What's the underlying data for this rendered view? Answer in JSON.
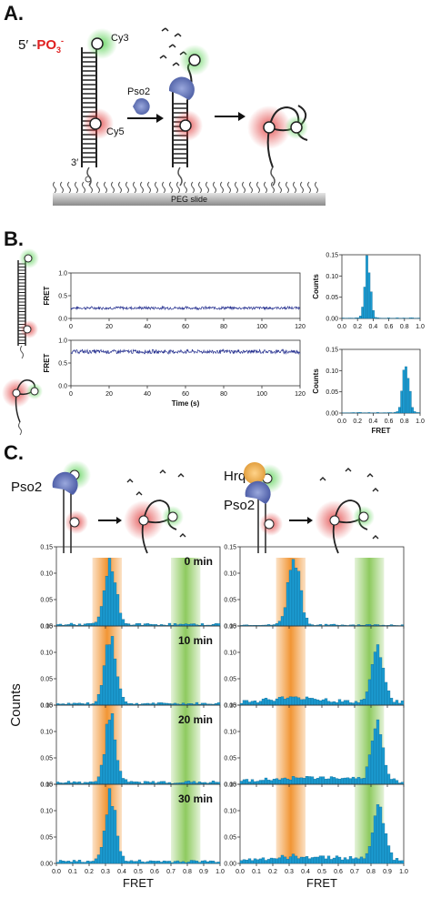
{
  "panels": {
    "a": "A.",
    "b": "B.",
    "c": "C."
  },
  "panelA": {
    "five_prime": "5′ -",
    "phosphate": "PO",
    "phosphate_sub": "3",
    "phosphate_sup": "-",
    "cy3": "Cy3",
    "cy5": "Cy5",
    "three_prime": "3′",
    "enzyme": "Pso2",
    "slide": "PEG slide"
  },
  "panelB": {
    "trace_ylabel": "FRET",
    "trace_xlabel": "Time (s)",
    "hist_ylabel": "Counts",
    "hist_xlabel": "FRET"
  },
  "panelC": {
    "left_enzyme": "Pso2",
    "right_enzyme_top": "Hrq1",
    "right_enzyme_bottom": "Pso2",
    "times": [
      "0 min",
      "10 min",
      "20 min",
      "30 min"
    ],
    "ylabel": "Counts",
    "xlabel": "FRET"
  },
  "colors": {
    "trace": "#1f2a8c",
    "hist": "#1b9bd1",
    "orange": "#f08a1e",
    "green": "#7ac143",
    "red": "#e02020"
  },
  "chart_data": [
    {
      "type": "line",
      "id": "trace-intact",
      "ylabel": "FRET",
      "xlabel": "",
      "xlim": [
        0,
        120
      ],
      "ylim": [
        0,
        1
      ],
      "x_ticks": [
        0,
        20,
        40,
        60,
        80,
        100,
        120
      ],
      "y_ticks": [
        0.0,
        0.5,
        1.0
      ],
      "series": [
        {
          "mean": 0.23,
          "noise": 0.03
        }
      ]
    },
    {
      "type": "line",
      "id": "trace-cleaved",
      "ylabel": "FRET",
      "xlabel": "Time (s)",
      "xlim": [
        0,
        120
      ],
      "ylim": [
        0,
        1
      ],
      "x_ticks": [
        0,
        20,
        40,
        60,
        80,
        100,
        120
      ],
      "y_ticks": [
        0.0,
        0.5,
        1.0
      ],
      "series": [
        {
          "mean": 0.75,
          "noise": 0.04
        }
      ]
    },
    {
      "type": "bar",
      "id": "hist-intact",
      "ylabel": "Counts",
      "xlabel": "",
      "xlim": [
        0,
        1
      ],
      "ylim": [
        0,
        0.15
      ],
      "x_ticks": [
        0.0,
        0.2,
        0.4,
        0.6,
        0.8,
        1.0
      ],
      "y_ticks": [
        0.0,
        0.05,
        0.1,
        0.15
      ],
      "peaks": [
        {
          "center": 0.33,
          "height": 0.14,
          "width": 0.035
        }
      ]
    },
    {
      "type": "bar",
      "id": "hist-cleaved",
      "ylabel": "Counts",
      "xlabel": "FRET",
      "xlim": [
        0,
        1
      ],
      "ylim": [
        0,
        0.15
      ],
      "x_ticks": [
        0.0,
        0.2,
        0.4,
        0.6,
        0.8,
        1.0
      ],
      "y_ticks": [
        0.0,
        0.05,
        0.1,
        0.15
      ],
      "peaks": [
        {
          "center": 0.82,
          "height": 0.12,
          "width": 0.04
        }
      ]
    },
    {
      "type": "bar",
      "id": "c-left",
      "ylabel": "Counts",
      "xlabel": "FRET",
      "xlim": [
        0,
        1
      ],
      "ylim": [
        0,
        0.15
      ],
      "x_ticks": [
        0.0,
        0.1,
        0.2,
        0.3,
        0.4,
        0.5,
        0.6,
        0.7,
        0.8,
        0.9,
        1.0
      ],
      "y_ticks": [
        0.0,
        0.05,
        0.1,
        0.15
      ],
      "bands": {
        "orange": [
          0.22,
          0.4
        ],
        "green": [
          0.7,
          0.88
        ]
      },
      "panels": [
        {
          "label": "0 min",
          "peaks": [
            {
              "center": 0.33,
              "height": 0.115,
              "width": 0.035
            }
          ],
          "floor": 0.003
        },
        {
          "label": "10 min",
          "peaks": [
            {
              "center": 0.33,
              "height": 0.12,
              "width": 0.035
            }
          ],
          "floor": 0.003
        },
        {
          "label": "20 min",
          "peaks": [
            {
              "center": 0.33,
              "height": 0.12,
              "width": 0.033
            }
          ],
          "floor": 0.004
        },
        {
          "label": "30 min",
          "peaks": [
            {
              "center": 0.33,
              "height": 0.125,
              "width": 0.033
            }
          ],
          "floor": 0.004
        }
      ]
    },
    {
      "type": "bar",
      "id": "c-right",
      "ylabel": "Counts",
      "xlabel": "FRET",
      "xlim": [
        0,
        1
      ],
      "ylim": [
        0,
        0.15
      ],
      "x_ticks": [
        0.0,
        0.1,
        0.2,
        0.3,
        0.4,
        0.5,
        0.6,
        0.7,
        0.8,
        0.9,
        1.0
      ],
      "y_ticks": [
        0.0,
        0.05,
        0.1,
        0.15
      ],
      "bands": {
        "orange": [
          0.22,
          0.4
        ],
        "green": [
          0.7,
          0.88
        ]
      },
      "panels": [
        {
          "peaks": [
            {
              "center": 0.33,
              "height": 0.135,
              "width": 0.035
            }
          ],
          "floor": 0.002
        },
        {
          "peaks": [
            {
              "center": 0.84,
              "height": 0.11,
              "width": 0.035
            },
            {
              "center": 0.35,
              "height": 0.008,
              "width": 0.15
            }
          ],
          "floor": 0.006
        },
        {
          "peaks": [
            {
              "center": 0.84,
              "height": 0.1,
              "width": 0.035
            },
            {
              "center": 0.45,
              "height": 0.007,
              "width": 0.2
            }
          ],
          "floor": 0.006
        },
        {
          "peaks": [
            {
              "center": 0.85,
              "height": 0.105,
              "width": 0.035
            },
            {
              "center": 0.45,
              "height": 0.006,
              "width": 0.2
            }
          ],
          "floor": 0.007
        }
      ]
    }
  ]
}
